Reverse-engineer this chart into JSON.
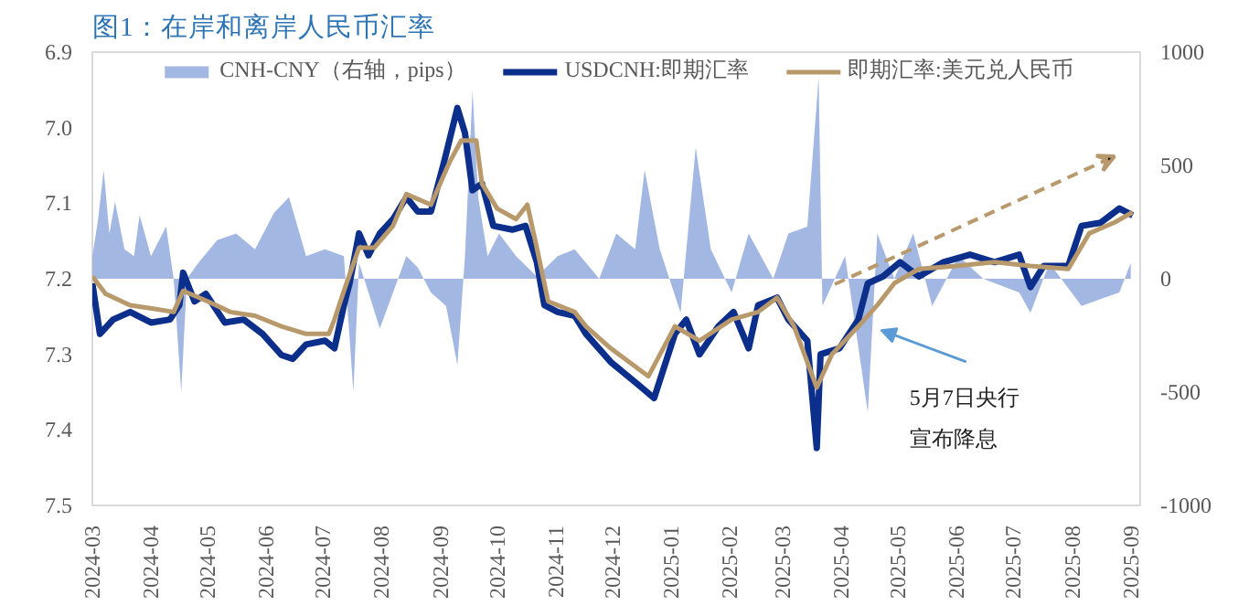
{
  "chart_data": {
    "type": "line",
    "title": "图1：在岸和离岸人民币汇率",
    "xlim": [
      "2024-03-01",
      "2025-09-06"
    ],
    "xticks": [
      {
        "value": "2024-03-01",
        "label": "2024-03"
      },
      {
        "value": "2024-04-01",
        "label": "2024-04"
      },
      {
        "value": "2024-05-01",
        "label": "2024-05"
      },
      {
        "value": "2024-06-01",
        "label": "2024-06"
      },
      {
        "value": "2024-07-01",
        "label": "2024-07"
      },
      {
        "value": "2024-08-01",
        "label": "2024-08"
      },
      {
        "value": "2024-09-01",
        "label": "2024-09"
      },
      {
        "value": "2024-10-01",
        "label": "2024-10"
      },
      {
        "value": "2024-11-01",
        "label": "2024-11"
      },
      {
        "value": "2024-12-01",
        "label": "2024-12"
      },
      {
        "value": "2025-01-01",
        "label": "2025-01"
      },
      {
        "value": "2025-02-01",
        "label": "2025-02"
      },
      {
        "value": "2025-03-01",
        "label": "2025-03"
      },
      {
        "value": "2025-04-01",
        "label": "2025-04"
      },
      {
        "value": "2025-05-01",
        "label": "2025-05"
      },
      {
        "value": "2025-06-01",
        "label": "2025-06"
      },
      {
        "value": "2025-07-01",
        "label": "2025-07"
      },
      {
        "value": "2025-08-01",
        "label": "2025-08"
      },
      {
        "value": "2025-09-01",
        "label": "2025-09"
      }
    ],
    "ylim": [
      7.5,
      6.9
    ],
    "yticks": [
      6.9,
      {
        "value": 7.0,
        "label": "7.0"
      },
      7.1,
      7.2,
      7.3,
      7.4,
      7.5
    ],
    "y2lim": [
      -1000,
      1000
    ],
    "y2ticks": [
      -1000,
      -500,
      0,
      500,
      1000
    ],
    "grid": false,
    "legend": "top",
    "series": [
      {
        "name": "CNH-CNY（右轴，pips）",
        "type": "area",
        "axis": "y2",
        "color": "#a3b7e3",
        "x": [
          "2024-03-01",
          "2024-03-04",
          "2024-03-07",
          "2024-03-10",
          "2024-03-13",
          "2024-03-18",
          "2024-03-23",
          "2024-03-26",
          "2024-04-01",
          "2024-04-09",
          "2024-04-13",
          "2024-04-17",
          "2024-04-20",
          "2024-04-26",
          "2024-05-06",
          "2024-05-16",
          "2024-05-26",
          "2024-06-05",
          "2024-06-13",
          "2024-06-22",
          "2024-07-02",
          "2024-07-12",
          "2024-07-17",
          "2024-07-20",
          "2024-07-25",
          "2024-07-31",
          "2024-08-07",
          "2024-08-14",
          "2024-08-20",
          "2024-08-27",
          "2024-09-04",
          "2024-09-10",
          "2024-09-14",
          "2024-09-18",
          "2024-09-21",
          "2024-09-26",
          "2024-10-02",
          "2024-10-11",
          "2024-10-22",
          "2024-11-02",
          "2024-11-11",
          "2024-11-24",
          "2024-12-03",
          "2024-12-13",
          "2024-12-18",
          "2024-12-26",
          "2025-01-06",
          "2025-01-14",
          "2025-01-22",
          "2025-02-02",
          "2025-02-11",
          "2025-02-24",
          "2025-03-04",
          "2025-03-14",
          "2025-03-20",
          "2025-03-22",
          "2025-04-03",
          "2025-04-15",
          "2025-04-20",
          "2025-04-29",
          "2025-05-09",
          "2025-05-19",
          "2025-06-02",
          "2025-06-15",
          "2025-07-04",
          "2025-07-10",
          "2025-07-20",
          "2025-08-06",
          "2025-08-16",
          "2025-08-26",
          "2025-09-01"
        ],
        "values": [
          100,
          260,
          480,
          200,
          340,
          130,
          100,
          280,
          100,
          230,
          0,
          -500,
          0,
          70,
          170,
          200,
          130,
          290,
          360,
          100,
          130,
          100,
          -500,
          70,
          -60,
          -220,
          -60,
          100,
          50,
          -60,
          -120,
          -380,
          100,
          830,
          360,
          100,
          200,
          100,
          10,
          100,
          130,
          0,
          200,
          130,
          480,
          130,
          -150,
          580,
          130,
          -60,
          200,
          0,
          200,
          230,
          890,
          -120,
          100,
          -590,
          200,
          0,
          200,
          -120,
          100,
          0,
          -60,
          -150,
          70,
          -120,
          -90,
          -60,
          70
        ]
      },
      {
        "name": "USDCNH:即期汇率",
        "color": "#0d2f8c",
        "x": [
          "2024-03-01",
          "2024-03-05",
          "2024-03-12",
          "2024-03-21",
          "2024-04-01",
          "2024-04-11",
          "2024-04-16",
          "2024-04-18",
          "2024-04-24",
          "2024-04-30",
          "2024-05-10",
          "2024-05-20",
          "2024-05-30",
          "2024-06-09",
          "2024-06-15",
          "2024-06-22",
          "2024-07-02",
          "2024-07-07",
          "2024-07-12",
          "2024-07-15",
          "2024-07-20",
          "2024-07-25",
          "2024-07-31",
          "2024-08-07",
          "2024-08-14",
          "2024-08-20",
          "2024-08-27",
          "2024-09-03",
          "2024-09-10",
          "2024-09-14",
          "2024-09-18",
          "2024-09-23",
          "2024-09-29",
          "2024-10-09",
          "2024-10-16",
          "2024-10-22",
          "2024-10-26",
          "2024-11-02",
          "2024-11-11",
          "2024-11-17",
          "2024-11-30",
          "2024-12-14",
          "2024-12-23",
          "2025-01-03",
          "2025-01-09",
          "2025-01-16",
          "2025-01-26",
          "2025-02-03",
          "2025-02-11",
          "2025-02-16",
          "2025-02-26",
          "2025-03-04",
          "2025-03-14",
          "2025-03-19",
          "2025-03-21",
          "2025-03-31",
          "2025-04-10",
          "2025-04-15",
          "2025-04-23",
          "2025-05-02",
          "2025-05-12",
          "2025-05-25",
          "2025-06-08",
          "2025-06-21",
          "2025-07-04",
          "2025-07-10",
          "2025-07-17",
          "2025-07-30",
          "2025-08-06",
          "2025-08-16",
          "2025-08-26",
          "2025-09-02"
        ],
        "values": [
          7.206,
          7.273,
          7.254,
          7.244,
          7.258,
          7.254,
          7.235,
          7.192,
          7.23,
          7.22,
          7.258,
          7.254,
          7.273,
          7.301,
          7.306,
          7.287,
          7.282,
          7.292,
          7.235,
          7.206,
          7.14,
          7.169,
          7.14,
          7.121,
          7.092,
          7.111,
          7.111,
          7.045,
          6.974,
          7.007,
          7.083,
          7.074,
          7.13,
          7.135,
          7.13,
          7.178,
          7.235,
          7.244,
          7.249,
          7.273,
          7.31,
          7.339,
          7.358,
          7.273,
          7.254,
          7.3,
          7.263,
          7.244,
          7.292,
          7.235,
          7.225,
          7.254,
          7.282,
          7.424,
          7.3,
          7.292,
          7.254,
          7.206,
          7.197,
          7.178,
          7.197,
          7.178,
          7.168,
          7.178,
          7.168,
          7.211,
          7.183,
          7.183,
          7.13,
          7.126,
          7.107,
          7.116
        ]
      },
      {
        "name": "即期汇率:美元兑人民币",
        "color": "#b8996b",
        "x": [
          "2024-03-01",
          "2024-03-08",
          "2024-03-21",
          "2024-04-03",
          "2024-04-13",
          "2024-04-18",
          "2024-05-01",
          "2024-05-13",
          "2024-05-26",
          "2024-06-09",
          "2024-06-22",
          "2024-07-04",
          "2024-07-07",
          "2024-07-12",
          "2024-07-20",
          "2024-07-28",
          "2024-08-07",
          "2024-08-14",
          "2024-08-27",
          "2024-09-06",
          "2024-09-12",
          "2024-09-20",
          "2024-09-23",
          "2024-10-01",
          "2024-10-11",
          "2024-10-17",
          "2024-10-22",
          "2024-10-28",
          "2024-11-11",
          "2024-11-17",
          "2024-11-30",
          "2024-12-20",
          "2025-01-03",
          "2025-01-16",
          "2025-02-02",
          "2025-02-16",
          "2025-02-26",
          "2025-03-07",
          "2025-03-19",
          "2025-03-27",
          "2025-04-10",
          "2025-04-20",
          "2025-04-29",
          "2025-05-12",
          "2025-06-01",
          "2025-06-21",
          "2025-07-10",
          "2025-07-30",
          "2025-08-10",
          "2025-08-23",
          "2025-09-02"
        ],
        "values": [
          7.197,
          7.22,
          7.235,
          7.24,
          7.244,
          7.216,
          7.23,
          7.244,
          7.249,
          7.263,
          7.273,
          7.273,
          7.254,
          7.216,
          7.159,
          7.159,
          7.13,
          7.088,
          7.102,
          7.045,
          7.017,
          7.017,
          7.074,
          7.107,
          7.121,
          7.102,
          7.159,
          7.23,
          7.244,
          7.263,
          7.292,
          7.329,
          7.263,
          7.282,
          7.254,
          7.244,
          7.225,
          7.263,
          7.344,
          7.3,
          7.263,
          7.235,
          7.206,
          7.187,
          7.183,
          7.178,
          7.183,
          7.187,
          7.14,
          7.126,
          7.112
        ]
      }
    ],
    "annotations": [
      {
        "text": "5月7日央行",
        "x": "2025-04-19",
        "y": 7.265
      },
      "宣布降息"
    ]
  }
}
